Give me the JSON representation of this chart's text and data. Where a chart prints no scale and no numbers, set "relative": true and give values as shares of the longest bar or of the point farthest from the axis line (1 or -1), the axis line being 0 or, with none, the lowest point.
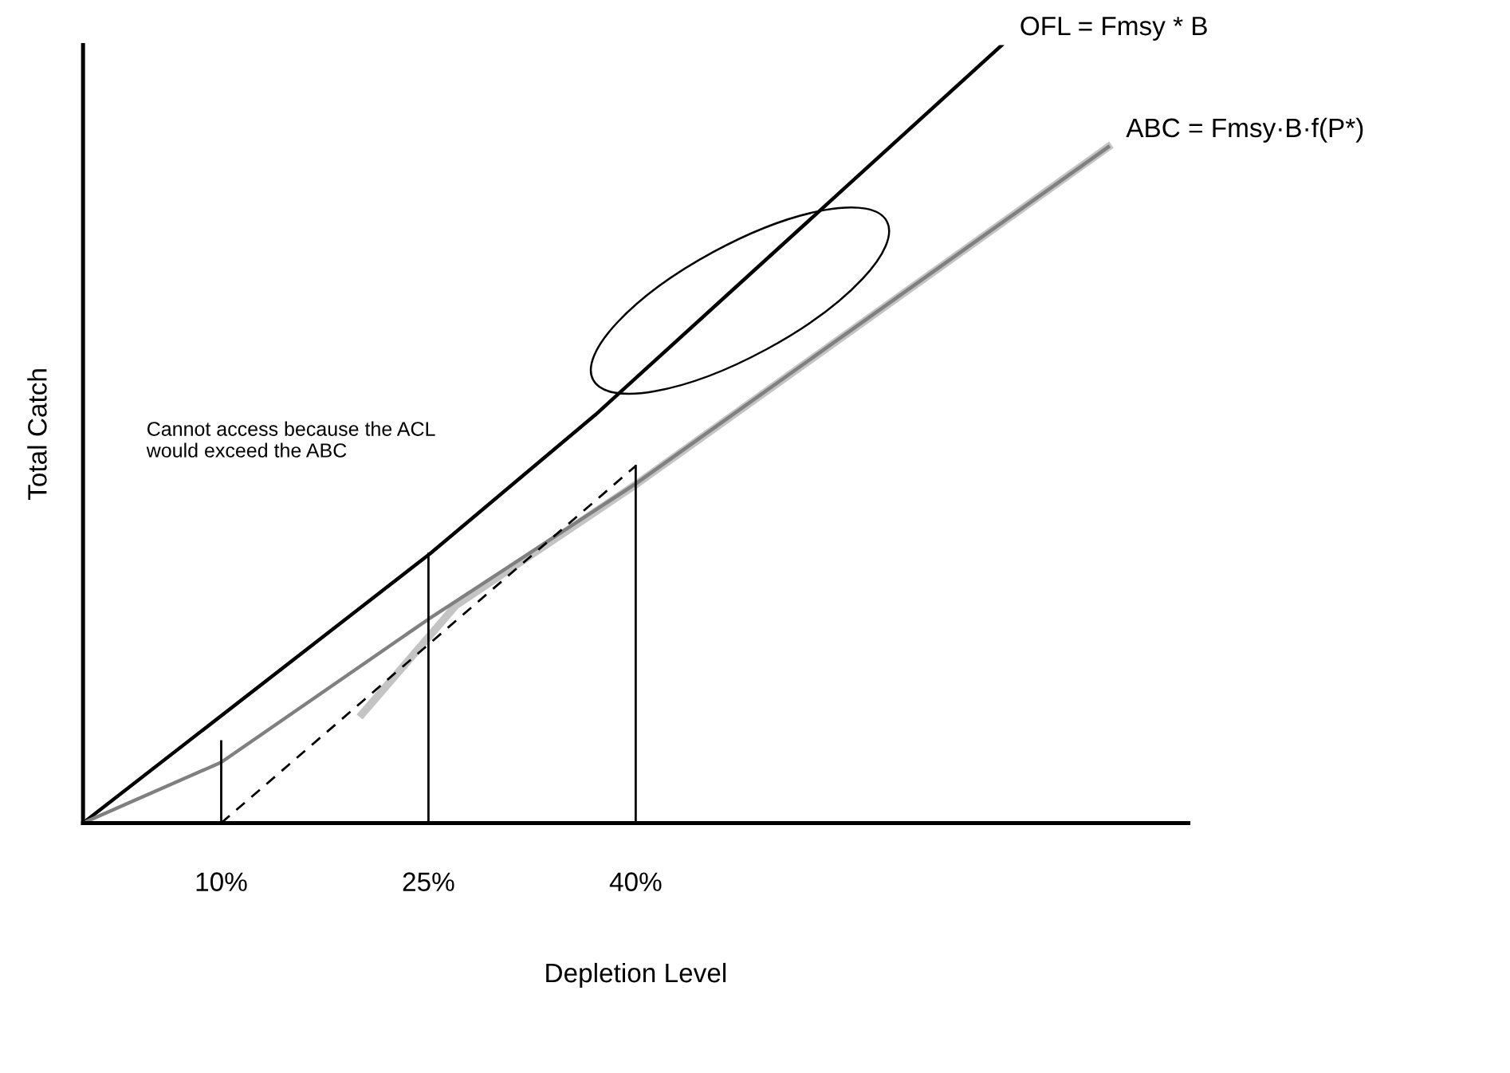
{
  "chart_data": {
    "type": "line",
    "relative": true,
    "xlabel": "Depletion Level",
    "ylabel": "Total Catch",
    "xlim": [
      0,
      80
    ],
    "xticks": [
      {
        "value": 10,
        "label": "10%"
      },
      {
        "value": 25,
        "label": "25%"
      },
      {
        "value": 40,
        "label": "40%"
      }
    ],
    "tick_labels": "x",
    "grid": false,
    "legend": false,
    "marker": "none",
    "annotations": [
      "Cannot access because the ACL\nwould exceed the ABC"
    ],
    "series": [
      {
        "name": "OFL = Fmsy * B",
        "color": "#000000",
        "x": [
          0,
          25.1,
          37.1,
          66.5
        ],
        "values": [
          0,
          0.346,
          0.525,
          1.0
        ]
      },
      {
        "color": "#c4c4c4",
        "x": [
          20.2,
          27,
          40,
          74.2
        ],
        "values": [
          0.14,
          0.28,
          0.435,
          0.869
        ]
      },
      {
        "name": "ABC = Fmsy·B·f(P*)",
        "color": "#808080",
        "x": [
          0,
          10,
          25,
          40,
          74.2
        ],
        "values": [
          0,
          0.078,
          0.262,
          0.436,
          0.869
        ]
      },
      {
        "color": "#000000",
        "line_style": "dashed",
        "x": [
          10,
          40
        ],
        "values": [
          0,
          0.459
        ]
      },
      {
        "color": "#000000",
        "x": [
          10,
          10
        ],
        "values": [
          0,
          0.105
        ]
      },
      {
        "color": "#000000",
        "x": [
          25,
          25
        ],
        "values": [
          0,
          0.346
        ]
      },
      {
        "color": "#000000",
        "x": [
          40,
          40
        ],
        "values": [
          0,
          0.459
        ]
      }
    ]
  }
}
